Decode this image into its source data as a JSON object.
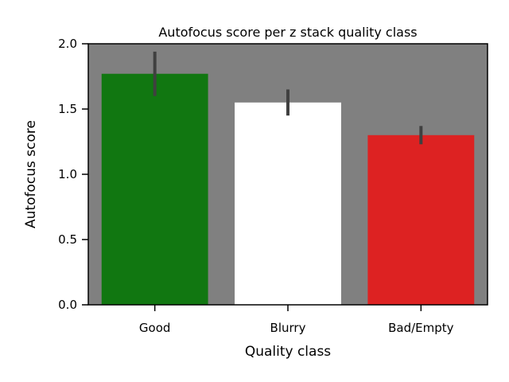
{
  "chart_data": {
    "type": "bar",
    "title": "Autofocus score per z stack quality class",
    "xlabel": "Quality class",
    "ylabel": "Autofocus score",
    "categories": [
      "Good",
      "Blurry",
      "Bad/Empty"
    ],
    "values": [
      1.77,
      1.55,
      1.3
    ],
    "error_low": [
      1.6,
      1.45,
      1.23
    ],
    "error_high": [
      1.94,
      1.65,
      1.37
    ],
    "bar_colors": [
      "#117711",
      "#ffffff",
      "#dd2222"
    ],
    "background_color": "#808080",
    "errorbar_color": "#404040",
    "ylim": [
      0,
      2.0
    ],
    "yticks": [
      0.0,
      0.5,
      1.0,
      1.5,
      2.0
    ],
    "ytick_labels": [
      "0.0",
      "0.5",
      "1.0",
      "1.5",
      "2.0"
    ],
    "grid": false,
    "legend": "none"
  }
}
